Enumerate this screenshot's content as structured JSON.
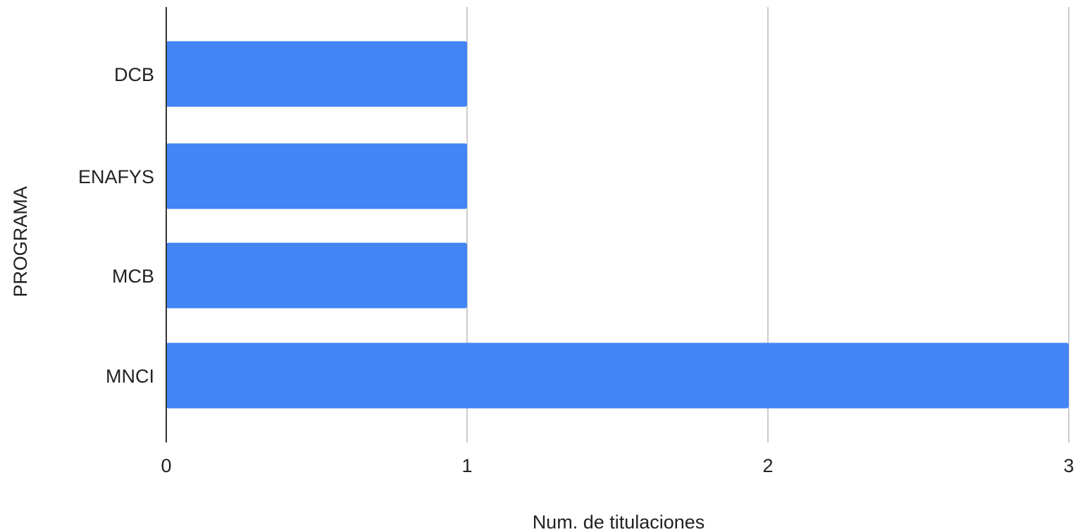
{
  "chart_data": {
    "type": "bar",
    "orientation": "horizontal",
    "categories": [
      "DCB",
      "ENAFYS",
      "MCB",
      "MNCI"
    ],
    "values": [
      1,
      1,
      1,
      3
    ],
    "xlabel": "Num. de titulaciones",
    "ylabel": "PROGRAMA",
    "xlim": [
      0,
      3
    ],
    "xticks": [
      "0",
      "1",
      "2",
      "3"
    ],
    "grid": true,
    "legend": "none",
    "colors": {
      "bar": "#4285f4",
      "grid": "#cccccc",
      "axis": "#333333"
    }
  }
}
